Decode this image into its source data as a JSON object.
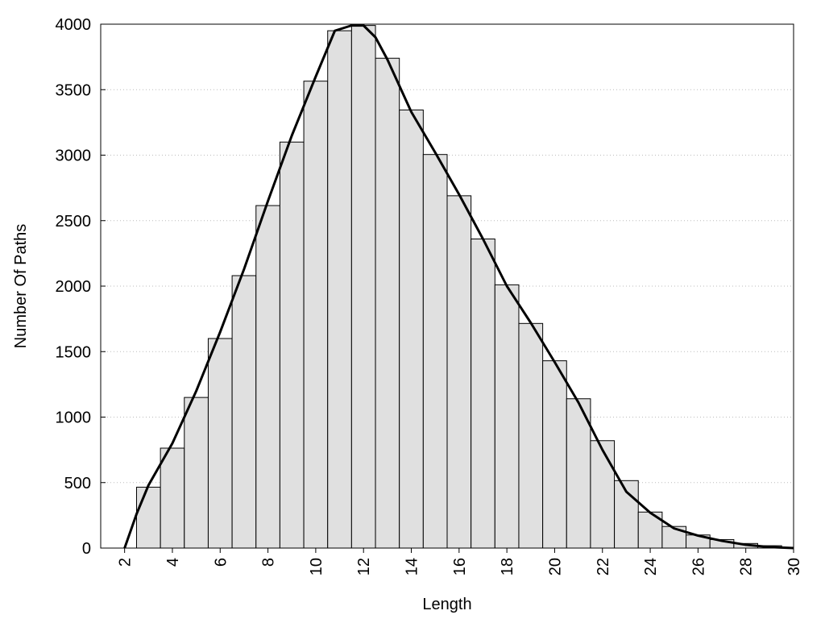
{
  "chart_data": {
    "type": "histogram",
    "xlabel": "Length",
    "ylabel": "Number Of Paths",
    "bins": [
      2.5,
      3.5,
      4.5,
      5.5,
      6.5,
      7.5,
      8.5,
      9.5,
      10.5,
      11.5,
      12.5,
      13.5,
      14.5,
      15.5,
      16.5,
      17.5,
      18.5,
      19.5,
      20.5,
      21.5,
      22.5,
      23.5,
      24.5,
      25.5,
      26.5,
      27.5,
      28.5,
      29.5
    ],
    "counts": [
      465,
      763,
      1150,
      1600,
      2080,
      2615,
      3100,
      3565,
      3950,
      3990,
      3740,
      3345,
      3005,
      2690,
      2360,
      2010,
      1715,
      1430,
      1140,
      820,
      515,
      275,
      165,
      100,
      65,
      35,
      18
    ],
    "color": "#e0e0e0",
    "curve": {
      "type": "line",
      "color": "#000000",
      "x": [
        2,
        2.5,
        3,
        4,
        5,
        6,
        7,
        8,
        9,
        10,
        10.8,
        11.5,
        12,
        12.5,
        13,
        14,
        15,
        16,
        17,
        18,
        19,
        20,
        21,
        22,
        23,
        24,
        25,
        26,
        27,
        28,
        29,
        30
      ],
      "values": [
        0,
        260,
        480,
        800,
        1200,
        1650,
        2130,
        2650,
        3150,
        3600,
        3950,
        3990,
        3990,
        3900,
        3730,
        3330,
        3020,
        2700,
        2360,
        2000,
        1720,
        1420,
        1110,
        750,
        430,
        270,
        150,
        95,
        55,
        25,
        8,
        0
      ]
    },
    "xlim": [
      1,
      30
    ],
    "ylim": [
      0,
      4000
    ],
    "xticks": [
      2,
      4,
      6,
      8,
      10,
      12,
      14,
      16,
      18,
      20,
      22,
      24,
      26,
      28,
      30
    ],
    "yticks": [
      0,
      500,
      1000,
      1500,
      2000,
      2500,
      3000,
      3500,
      4000
    ],
    "grid": true
  }
}
